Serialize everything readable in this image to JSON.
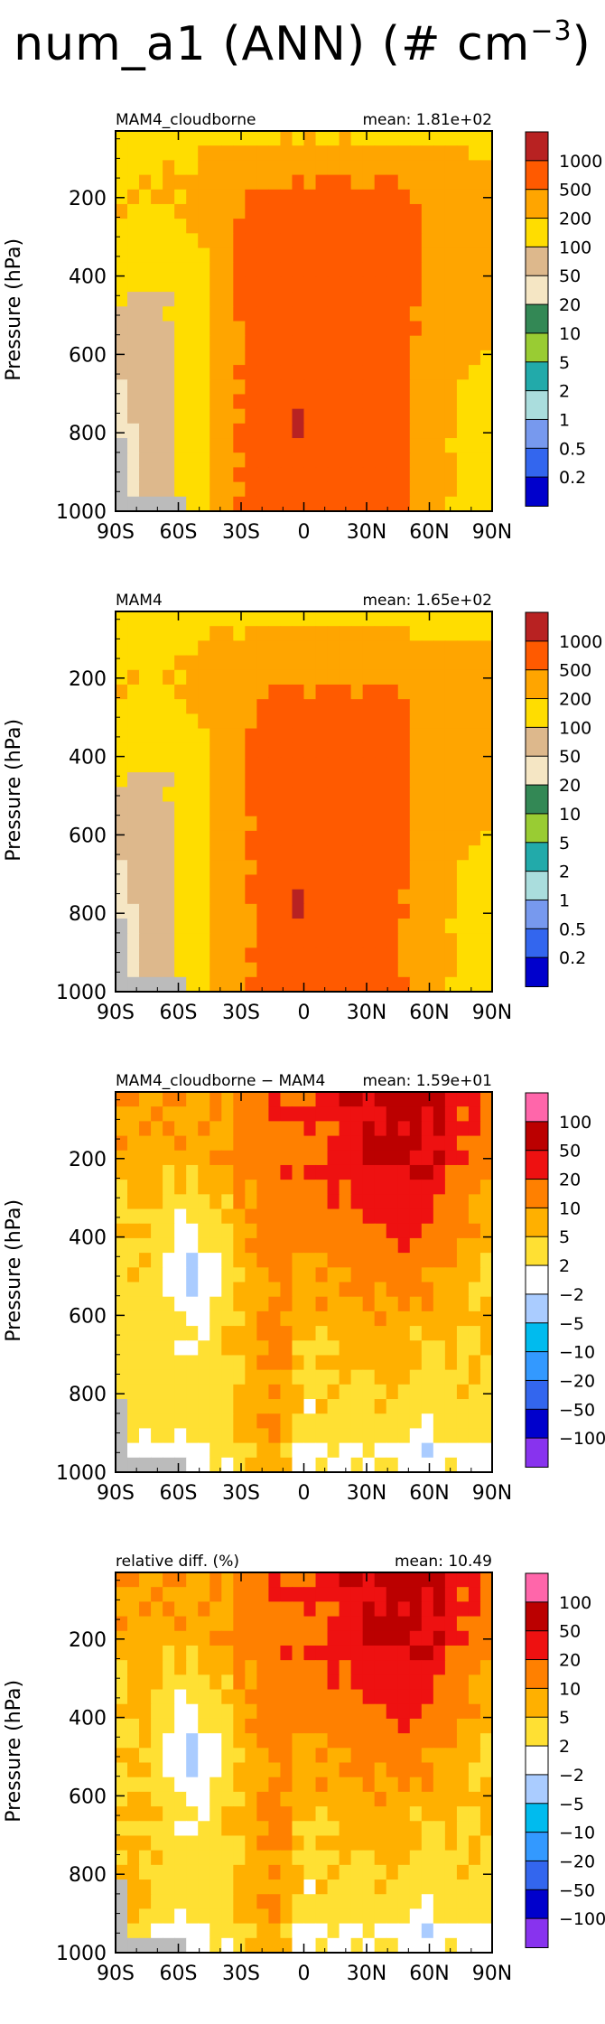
{
  "figure": {
    "title_text": "num_a1 (ANN) (# cm",
    "title_exponent": "−3"
  },
  "palettes": {
    "abs": [
      "#0000CC",
      "#3366EE",
      "#7799EE",
      "#AADDDD",
      "#22AAAA",
      "#99CC33",
      "#338855",
      "#F5E6C4",
      "#DDB88C",
      "#FFDD00",
      "#FFA500",
      "#FF5A00",
      "#B82222"
    ],
    "diff": [
      "#8833EE",
      "#0000CC",
      "#3366EE",
      "#3399FF",
      "#00BBEE",
      "#AACCFF",
      "#FFFFFF",
      "#FFE033",
      "#FFB000",
      "#FF8000",
      "#EE1111",
      "#BB0000",
      "#FF66AA"
    ],
    "missing": "#BBBBBB"
  },
  "chart_data": [
    {
      "type": "heatmap",
      "panel_title": "MAM4_cloudborne",
      "stat_text": "mean: 1.81e+02",
      "ylabel": "Pressure (hPa)",
      "x_ticks": [
        "90S",
        "60S",
        "30S",
        "0",
        "30N",
        "60N",
        "90N"
      ],
      "y_ticks": [
        "200",
        "400",
        "600",
        "800",
        "1000"
      ],
      "xlim": [
        -90,
        90
      ],
      "ylim": [
        1000,
        30
      ],
      "colorbar_levels": [
        "1000",
        "500",
        "200",
        "100",
        "50",
        "20",
        "10",
        "5",
        "2",
        "1",
        "0.5",
        "0.2"
      ],
      "palette": "abs",
      "grid": false,
      "legend_position": "right"
    },
    {
      "type": "heatmap",
      "panel_title": "MAM4",
      "stat_text": "mean: 1.65e+02",
      "ylabel": "Pressure (hPa)",
      "x_ticks": [
        "90S",
        "60S",
        "30S",
        "0",
        "30N",
        "60N",
        "90N"
      ],
      "y_ticks": [
        "200",
        "400",
        "600",
        "800",
        "1000"
      ],
      "xlim": [
        -90,
        90
      ],
      "ylim": [
        1000,
        30
      ],
      "colorbar_levels": [
        "1000",
        "500",
        "200",
        "100",
        "50",
        "20",
        "10",
        "5",
        "2",
        "1",
        "0.5",
        "0.2"
      ],
      "palette": "abs",
      "grid": false,
      "legend_position": "right"
    },
    {
      "type": "heatmap",
      "panel_title": "MAM4_cloudborne − MAM4",
      "stat_text": "mean: 1.59e+01",
      "ylabel": "Pressure (hPa)",
      "x_ticks": [
        "90S",
        "60S",
        "30S",
        "0",
        "30N",
        "60N",
        "90N"
      ],
      "y_ticks": [
        "200",
        "400",
        "600",
        "800",
        "1000"
      ],
      "xlim": [
        -90,
        90
      ],
      "ylim": [
        1000,
        30
      ],
      "colorbar_levels": [
        "100",
        "50",
        "20",
        "10",
        "5",
        "2",
        "−2",
        "−5",
        "−10",
        "−20",
        "−50",
        "−100"
      ],
      "palette": "diff",
      "grid": false,
      "legend_position": "right"
    },
    {
      "type": "heatmap",
      "panel_title": "relative diff. (%)",
      "stat_text": "mean: 10.49",
      "ylabel": "Pressure (hPa)",
      "x_ticks": [
        "90S",
        "60S",
        "30S",
        "0",
        "30N",
        "60N",
        "90N"
      ],
      "y_ticks": [
        "200",
        "400",
        "600",
        "800",
        "1000"
      ],
      "xlim": [
        -90,
        90
      ],
      "ylim": [
        1000,
        30
      ],
      "colorbar_levels": [
        "100",
        "50",
        "20",
        "10",
        "5",
        "2",
        "−2",
        "−5",
        "−10",
        "−20",
        "−50",
        "−100"
      ],
      "palette": "diff",
      "grid": false,
      "legend_position": "right"
    }
  ]
}
